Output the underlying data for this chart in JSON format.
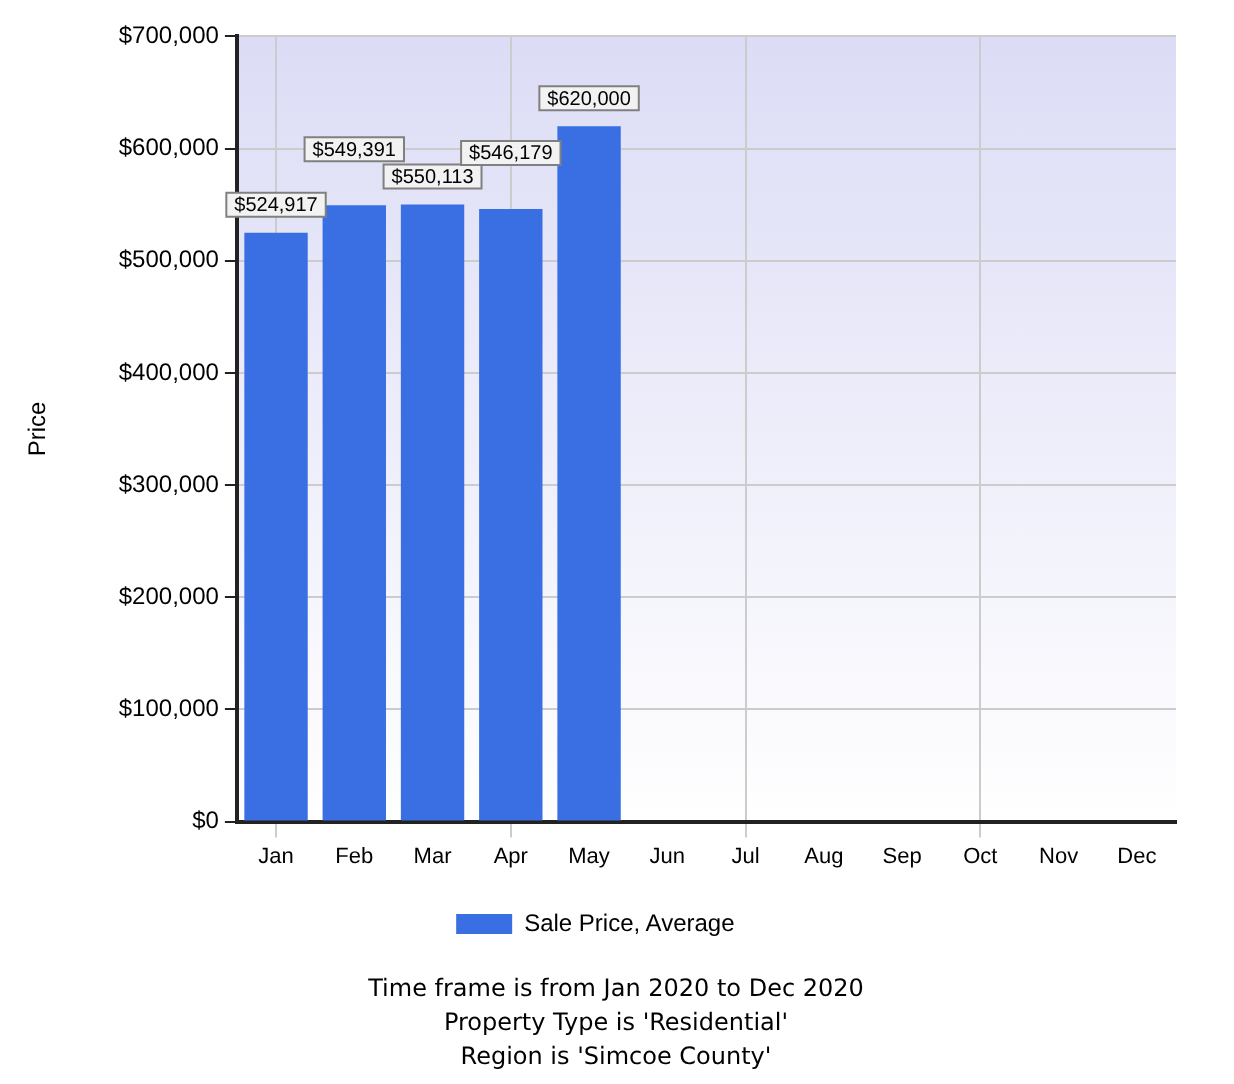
{
  "chart_data": {
    "type": "bar",
    "ylabel": "Price",
    "categories": [
      "Jan",
      "Feb",
      "Mar",
      "Apr",
      "May",
      "Jun",
      "Jul",
      "Aug",
      "Sep",
      "Oct",
      "Nov",
      "Dec"
    ],
    "series": [
      {
        "name": "Sale Price, Average",
        "color": "#3a6fe4",
        "values": [
          524917,
          549391,
          550113,
          546179,
          620000,
          null,
          null,
          null,
          null,
          null,
          null,
          null
        ],
        "value_labels": [
          "$524,917",
          "$549,391",
          "$550,113",
          "$546,179",
          "$620,000",
          null,
          null,
          null,
          null,
          null,
          null,
          null
        ]
      }
    ],
    "ylim": [
      0,
      700000
    ],
    "yticks": [
      {
        "value": 0,
        "label": "$0"
      },
      {
        "value": 100000,
        "label": "$100,000"
      },
      {
        "value": 200000,
        "label": "$200,000"
      },
      {
        "value": 300000,
        "label": "$300,000"
      },
      {
        "value": 400000,
        "label": "$400,000"
      },
      {
        "value": 500000,
        "label": "$500,000"
      },
      {
        "value": 600000,
        "label": "$600,000"
      },
      {
        "value": 700000,
        "label": "$700,000"
      }
    ],
    "grid": true,
    "legend": "bottom",
    "annotations": [
      "Time frame is from Jan 2020 to Dec 2020",
      "Property Type is 'Residential'",
      "Region is 'Simcoe County'"
    ]
  }
}
